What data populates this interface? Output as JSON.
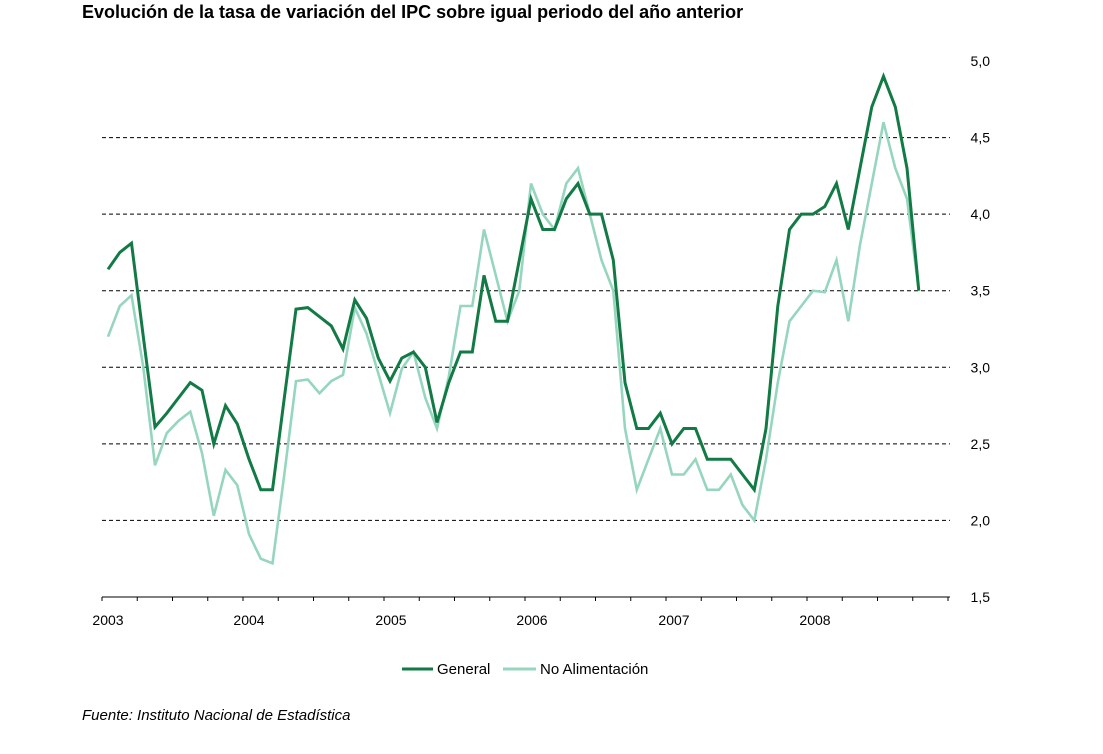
{
  "title": "Evolución de la tasa de variación del IPC sobre igual  periodo del año anterior",
  "source": "Fuente: Instituto Nacional de Estadística",
  "chart_data": {
    "type": "line",
    "title": "Evolución de la tasa de variación del IPC sobre igual  periodo del año anterior",
    "ylim": [
      1.5,
      5.0
    ],
    "yticks": [
      "1,5",
      "2,0",
      "2,5",
      "3,0",
      "3,5",
      "4,0",
      "4,5",
      "5,0"
    ],
    "ytick_values": [
      1.5,
      2.0,
      2.5,
      3.0,
      3.5,
      4.0,
      4.5,
      5.0
    ],
    "x_labels": [
      "2003",
      "2004",
      "2005",
      "2006",
      "2007",
      "2008"
    ],
    "grid": "horizontal dashed",
    "legend_position": "bottom",
    "series": [
      {
        "name": "General",
        "color": "#127a45",
        "values": [
          3.64,
          3.75,
          3.81,
          3.2,
          2.61,
          2.7,
          2.8,
          2.9,
          2.85,
          2.5,
          2.75,
          2.63,
          2.4,
          2.2,
          2.2,
          2.8,
          3.38,
          3.39,
          3.33,
          3.27,
          3.12,
          3.44,
          3.32,
          3.06,
          2.91,
          3.06,
          3.1,
          3.0,
          2.64,
          2.9,
          3.1,
          3.1,
          3.6,
          3.3,
          3.3,
          3.7,
          4.1,
          3.9,
          3.9,
          4.1,
          4.2,
          4.0,
          4.0,
          3.7,
          2.9,
          2.6,
          2.6,
          2.7,
          2.5,
          2.6,
          2.6,
          2.4,
          2.4,
          2.4,
          2.3,
          2.2,
          2.6,
          3.4,
          3.9,
          4.0,
          4.0,
          4.05,
          4.2,
          3.9,
          4.3,
          4.7,
          4.9,
          4.7,
          4.3,
          3.5
        ]
      },
      {
        "name": "No Alimentación",
        "color": "#96d6be",
        "values": [
          3.2,
          3.4,
          3.47,
          3.0,
          2.36,
          2.57,
          2.65,
          2.71,
          2.44,
          2.03,
          2.33,
          2.23,
          1.91,
          1.75,
          1.72,
          2.3,
          2.91,
          2.92,
          2.83,
          2.91,
          2.95,
          3.39,
          3.22,
          2.96,
          2.7,
          2.99,
          3.1,
          2.8,
          2.6,
          2.94,
          3.4,
          3.4,
          3.9,
          3.6,
          3.3,
          3.5,
          4.2,
          4.0,
          3.9,
          4.2,
          4.3,
          4.0,
          3.7,
          3.5,
          2.6,
          2.2,
          2.4,
          2.6,
          2.3,
          2.3,
          2.4,
          2.2,
          2.2,
          2.3,
          2.1,
          2.0,
          2.4,
          2.9,
          3.3,
          3.4,
          3.5,
          3.49,
          3.7,
          3.3,
          3.8,
          4.2,
          4.6,
          4.3,
          4.1,
          3.5
        ]
      }
    ]
  }
}
